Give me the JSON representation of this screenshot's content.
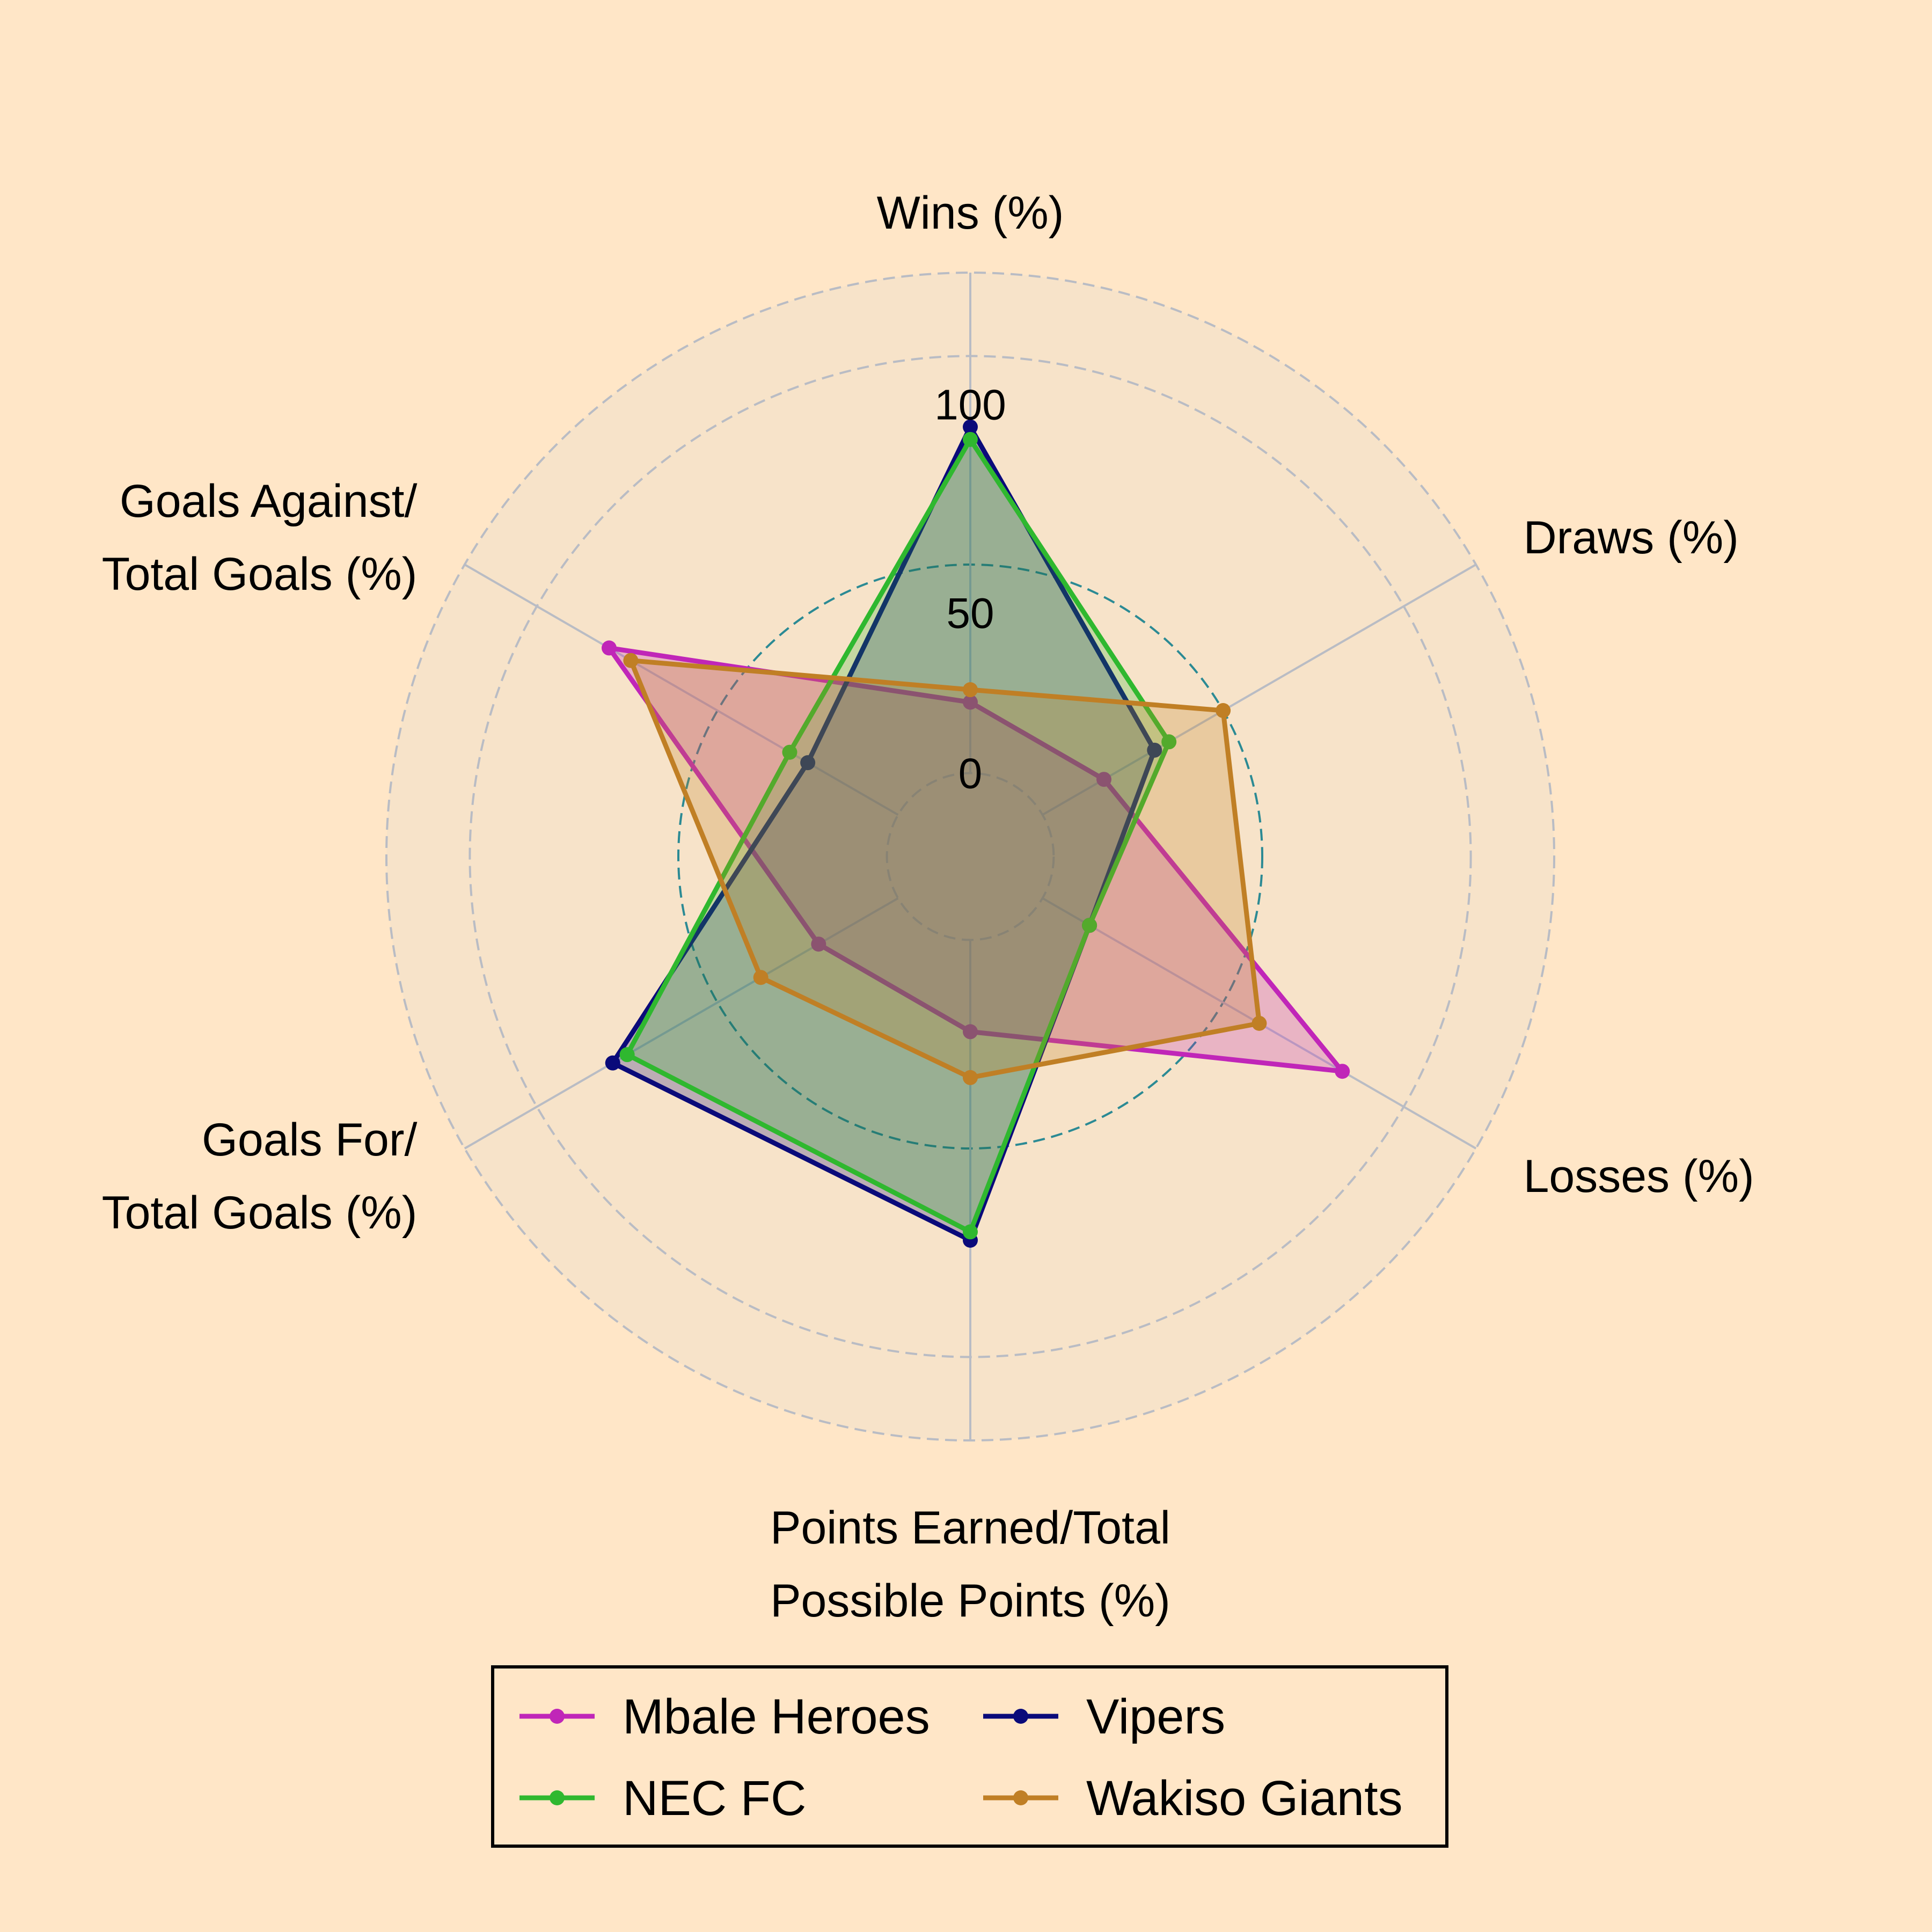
{
  "chart_data": {
    "type": "radar",
    "axes": [
      [
        "Wins (%)"
      ],
      [
        "Draws (%)"
      ],
      [
        "Losses (%)"
      ],
      [
        "Points Earned/Total",
        "Possible Points (%)"
      ],
      [
        "Goals For/",
        "Total Goals (%)"
      ],
      [
        "Goals Against/",
        "Total Goals (%)"
      ]
    ],
    "rlim": [
      -20,
      120
    ],
    "rticks": [
      0,
      50,
      100
    ],
    "rtick_labels": [
      "0",
      "50",
      "100"
    ],
    "series": [
      {
        "name": "Mbale Heroes",
        "color": "#c026b8",
        "values": [
          17,
          17,
          83,
          22,
          22,
          80
        ]
      },
      {
        "name": "Vipers",
        "color": "#0a0a7a",
        "values": [
          83,
          31,
          13,
          72,
          79,
          25
        ]
      },
      {
        "name": "NEC FC",
        "color": "#2fb82f",
        "values": [
          80,
          35,
          13,
          70,
          75,
          30
        ]
      },
      {
        "name": "Wakiso Giants",
        "color": "#c07f25",
        "values": [
          20,
          50,
          60,
          33,
          38,
          74
        ]
      }
    ],
    "legend": {
      "placement": "bottom-center",
      "columns": 2
    },
    "grid": true
  }
}
